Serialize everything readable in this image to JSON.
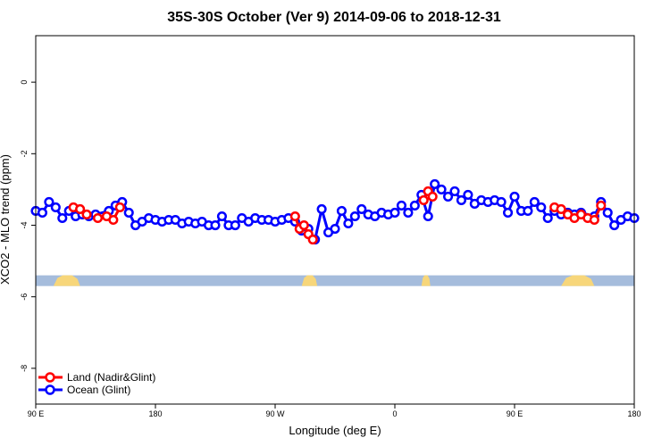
{
  "chart_data": {
    "type": "line",
    "title": "35S-30S October (Ver 9)   2014-09-06 to 2018-12-31",
    "xlabel": "Longitude (deg E)",
    "ylabel": "XCO2 - MLO trend (ppm)",
    "xlim": [
      -90,
      180
    ],
    "ylim": [
      -9.0,
      1.3
    ],
    "x_ticks": [
      {
        "value": -90,
        "label": "90 E"
      },
      {
        "value": -36,
        "label": "180"
      },
      {
        "value": 18,
        "label": "90 W"
      },
      {
        "value": 72,
        "label": "0"
      },
      {
        "value": 126,
        "label": "90 E"
      },
      {
        "value": 180,
        "label": "180"
      }
    ],
    "y_ticks": [
      {
        "value": 0,
        "label": "0"
      },
      {
        "value": -2,
        "label": "-2"
      },
      {
        "value": -4,
        "label": "-4"
      },
      {
        "value": -6,
        "label": "-6"
      },
      {
        "value": -8,
        "label": "-8"
      }
    ],
    "grid": false,
    "legend_position": "bottom-left",
    "land_band_y": -5.55,
    "series": [
      {
        "name": "Land (Nadir&Glint)",
        "color": "#ff0000",
        "segments": [
          [
            [
              -73,
              -3.5
            ],
            [
              -70,
              -3.55
            ],
            [
              -67,
              -3.7
            ]
          ],
          [
            [
              -62,
              -3.8
            ],
            [
              -58,
              -3.75
            ],
            [
              -55,
              -3.85
            ],
            [
              -52,
              -3.5
            ]
          ],
          [
            [
              27,
              -3.75
            ],
            [
              29,
              -4.1
            ],
            [
              31,
              -4.0
            ],
            [
              33,
              -4.25
            ],
            [
              35,
              -4.4
            ]
          ],
          [
            [
              85,
              -3.3
            ],
            [
              87,
              -3.05
            ],
            [
              89,
              -3.2
            ]
          ],
          [
            [
              144,
              -3.5
            ],
            [
              147,
              -3.55
            ],
            [
              150,
              -3.7
            ],
            [
              153,
              -3.8
            ],
            [
              156,
              -3.7
            ],
            [
              159,
              -3.8
            ],
            [
              162,
              -3.85
            ],
            [
              165,
              -3.45
            ]
          ]
        ]
      },
      {
        "name": "Ocean (Glint)",
        "color": "#0000ff",
        "points": [
          [
            -90,
            -3.6
          ],
          [
            -87,
            -3.65
          ],
          [
            -84,
            -3.35
          ],
          [
            -81,
            -3.5
          ],
          [
            -78,
            -3.8
          ],
          [
            -75,
            -3.6
          ],
          [
            -72,
            -3.75
          ],
          [
            -69,
            -3.7
          ],
          [
            -66,
            -3.75
          ],
          [
            -63,
            -3.7
          ],
          [
            -57,
            -3.6
          ],
          [
            -54,
            -3.45
          ],
          [
            -51,
            -3.35
          ],
          [
            -48,
            -3.65
          ],
          [
            -45,
            -4.0
          ],
          [
            -42,
            -3.9
          ],
          [
            -39,
            -3.8
          ],
          [
            -36,
            -3.85
          ],
          [
            -33,
            -3.9
          ],
          [
            -30,
            -3.85
          ],
          [
            -27,
            -3.85
          ],
          [
            -24,
            -3.95
          ],
          [
            -21,
            -3.9
          ],
          [
            -18,
            -3.95
          ],
          [
            -15,
            -3.9
          ],
          [
            -12,
            -4.0
          ],
          [
            -9,
            -4.0
          ],
          [
            -6,
            -3.75
          ],
          [
            -3,
            -4.0
          ],
          [
            0,
            -4.0
          ],
          [
            3,
            -3.8
          ],
          [
            6,
            -3.9
          ],
          [
            9,
            -3.8
          ],
          [
            12,
            -3.85
          ],
          [
            15,
            -3.85
          ],
          [
            18,
            -3.9
          ],
          [
            21,
            -3.85
          ],
          [
            24,
            -3.8
          ],
          [
            27,
            -3.9
          ],
          [
            30,
            -4.15
          ],
          [
            33,
            -4.1
          ],
          [
            36,
            -4.4
          ],
          [
            39,
            -3.55
          ],
          [
            42,
            -4.2
          ],
          [
            45,
            -4.1
          ],
          [
            48,
            -3.6
          ],
          [
            51,
            -3.95
          ],
          [
            54,
            -3.75
          ],
          [
            57,
            -3.55
          ],
          [
            60,
            -3.7
          ],
          [
            63,
            -3.75
          ],
          [
            66,
            -3.65
          ],
          [
            69,
            -3.7
          ],
          [
            72,
            -3.65
          ],
          [
            75,
            -3.45
          ],
          [
            78,
            -3.65
          ],
          [
            81,
            -3.45
          ],
          [
            84,
            -3.15
          ],
          [
            87,
            -3.75
          ],
          [
            90,
            -2.85
          ],
          [
            93,
            -3.0
          ],
          [
            96,
            -3.2
          ],
          [
            99,
            -3.05
          ],
          [
            102,
            -3.3
          ],
          [
            105,
            -3.15
          ],
          [
            108,
            -3.4
          ],
          [
            111,
            -3.3
          ],
          [
            114,
            -3.35
          ],
          [
            117,
            -3.3
          ],
          [
            120,
            -3.35
          ],
          [
            123,
            -3.65
          ],
          [
            126,
            -3.2
          ],
          [
            129,
            -3.6
          ],
          [
            132,
            -3.6
          ],
          [
            135,
            -3.35
          ],
          [
            138,
            -3.5
          ],
          [
            141,
            -3.8
          ],
          [
            144,
            -3.6
          ],
          [
            147,
            -3.7
          ],
          [
            150,
            -3.65
          ],
          [
            153,
            -3.7
          ],
          [
            156,
            -3.65
          ],
          [
            162,
            -3.75
          ],
          [
            165,
            -3.35
          ],
          [
            168,
            -3.65
          ],
          [
            171,
            -4.0
          ],
          [
            174,
            -3.85
          ],
          [
            177,
            -3.75
          ],
          [
            180,
            -3.8
          ]
        ]
      }
    ]
  }
}
